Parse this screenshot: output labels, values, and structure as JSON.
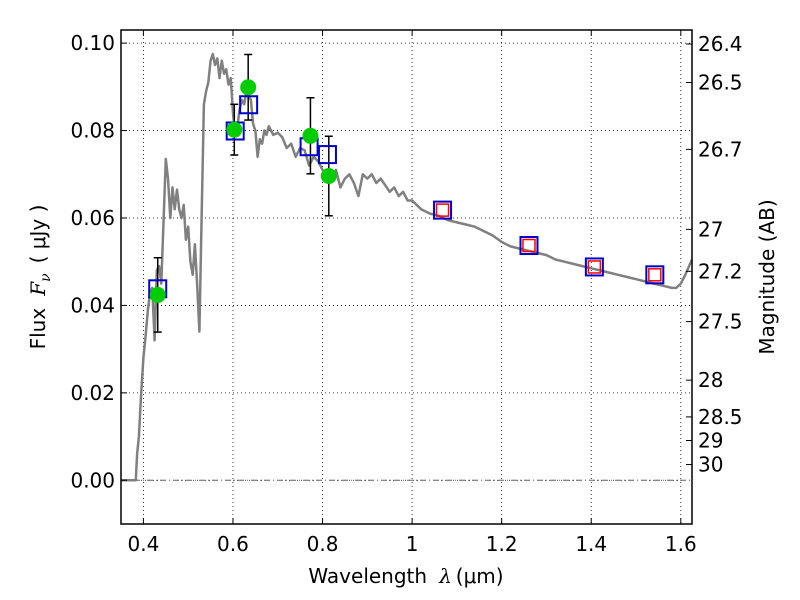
{
  "chart_data": {
    "type": "scatter",
    "title": "",
    "xlabel": {
      "prefix": "Wavelength",
      "symbol": "λ",
      "unit": "(μm)"
    },
    "ylabel": {
      "prefix": "Flux",
      "symbol": "F",
      "subscript": "ν",
      "unit": "( μJy )"
    },
    "y2label": "Magnitude (AB)",
    "xlim": [
      0.35,
      1.625
    ],
    "ylim": [
      -0.01,
      0.103
    ],
    "xticks": [
      0.4,
      0.6,
      0.8,
      1.0,
      1.2,
      1.4,
      1.6
    ],
    "xtick_labels": [
      "0.4",
      "0.6",
      "0.8",
      "1",
      "1.2",
      "1.4",
      "1.6"
    ],
    "yticks": [
      0.0,
      0.02,
      0.04,
      0.06,
      0.08,
      0.1
    ],
    "ytick_labels": [
      "0.00",
      "0.02",
      "0.04",
      "0.06",
      "0.08",
      "0.10"
    ],
    "y2ticks": [
      {
        "label": "26.4",
        "flux": 0.0998
      },
      {
        "label": "26.5",
        "flux": 0.091
      },
      {
        "label": "26.7",
        "flux": 0.0757
      },
      {
        "label": "27",
        "flux": 0.0574
      },
      {
        "label": "27.2",
        "flux": 0.0478
      },
      {
        "label": "27.5",
        "flux": 0.0363
      },
      {
        "label": "28",
        "flux": 0.0229
      },
      {
        "label": "28.5",
        "flux": 0.0145
      },
      {
        "label": "29",
        "flux": 0.0091
      },
      {
        "label": "30",
        "flux": 0.0036
      }
    ],
    "grid": true,
    "colors": {
      "model": "#808080",
      "observed": "#00cc00",
      "synthetic_box": "#0000cc",
      "synthetic_inner": "#ff0000",
      "errorbar": "#000000"
    },
    "model_sed": {
      "x": [
        0.35,
        0.383,
        0.386,
        0.39,
        0.395,
        0.4,
        0.405,
        0.41,
        0.415,
        0.42,
        0.425,
        0.43,
        0.435,
        0.44,
        0.445,
        0.45,
        0.455,
        0.46,
        0.465,
        0.47,
        0.475,
        0.48,
        0.485,
        0.49,
        0.495,
        0.5,
        0.505,
        0.51,
        0.515,
        0.52,
        0.525,
        0.53,
        0.535,
        0.54,
        0.545,
        0.55,
        0.555,
        0.56,
        0.565,
        0.57,
        0.575,
        0.58,
        0.585,
        0.59,
        0.595,
        0.6,
        0.605,
        0.61,
        0.615,
        0.62,
        0.625,
        0.63,
        0.635,
        0.64,
        0.645,
        0.65,
        0.655,
        0.66,
        0.665,
        0.67,
        0.675,
        0.68,
        0.685,
        0.69,
        0.7,
        0.71,
        0.72,
        0.73,
        0.74,
        0.75,
        0.76,
        0.77,
        0.78,
        0.79,
        0.8,
        0.81,
        0.82,
        0.83,
        0.84,
        0.85,
        0.86,
        0.87,
        0.88,
        0.89,
        0.9,
        0.91,
        0.92,
        0.93,
        0.94,
        0.95,
        0.96,
        0.97,
        0.98,
        0.99,
        1.0,
        1.02,
        1.04,
        1.06,
        1.08,
        1.1,
        1.12,
        1.14,
        1.16,
        1.18,
        1.2,
        1.22,
        1.24,
        1.26,
        1.28,
        1.3,
        1.32,
        1.34,
        1.36,
        1.38,
        1.4,
        1.42,
        1.44,
        1.46,
        1.48,
        1.5,
        1.52,
        1.54,
        1.56,
        1.58,
        1.59,
        1.6,
        1.61,
        1.625
      ],
      "y": [
        0.0,
        0.0,
        0.006,
        0.01,
        0.02,
        0.028,
        0.033,
        0.039,
        0.043,
        0.044,
        0.032,
        0.048,
        0.049,
        0.045,
        0.059,
        0.0735,
        0.069,
        0.06,
        0.067,
        0.062,
        0.0665,
        0.062,
        0.06,
        0.063,
        0.055,
        0.058,
        0.05,
        0.047,
        0.054,
        0.045,
        0.034,
        0.06,
        0.086,
        0.089,
        0.091,
        0.096,
        0.0975,
        0.095,
        0.0965,
        0.092,
        0.096,
        0.093,
        0.094,
        0.0905,
        0.092,
        0.084,
        0.079,
        0.081,
        0.085,
        0.087,
        0.086,
        0.089,
        0.088,
        0.087,
        0.0815,
        0.08,
        0.074,
        0.078,
        0.077,
        0.08,
        0.079,
        0.081,
        0.08,
        0.079,
        0.0795,
        0.0785,
        0.076,
        0.077,
        0.074,
        0.076,
        0.0755,
        0.072,
        0.074,
        0.073,
        0.071,
        0.07,
        0.069,
        0.071,
        0.067,
        0.069,
        0.07,
        0.068,
        0.065,
        0.07,
        0.069,
        0.07,
        0.068,
        0.069,
        0.0675,
        0.066,
        0.067,
        0.065,
        0.066,
        0.064,
        0.064,
        0.062,
        0.061,
        0.0605,
        0.0595,
        0.059,
        0.0585,
        0.058,
        0.057,
        0.056,
        0.0545,
        0.0535,
        0.053,
        0.0525,
        0.052,
        0.0515,
        0.0505,
        0.05,
        0.0495,
        0.049,
        0.0485,
        0.048,
        0.0475,
        0.047,
        0.0465,
        0.046,
        0.0455,
        0.045,
        0.0445,
        0.044,
        0.044,
        0.045,
        0.047,
        0.0505
      ]
    },
    "observed_points": [
      {
        "x": 0.432,
        "y": 0.0424,
        "err": 0.0085
      },
      {
        "x": 0.603,
        "y": 0.0802,
        "err": 0.0058
      },
      {
        "x": 0.634,
        "y": 0.0899,
        "err": 0.0075
      },
      {
        "x": 0.773,
        "y": 0.0788,
        "err": 0.0087
      },
      {
        "x": 0.814,
        "y": 0.0696,
        "err": 0.0091
      }
    ],
    "synthetic_points": [
      {
        "x": 0.432,
        "y": 0.0438,
        "inner": false
      },
      {
        "x": 0.605,
        "y": 0.0799,
        "inner": false
      },
      {
        "x": 0.635,
        "y": 0.0859,
        "inner": false
      },
      {
        "x": 0.77,
        "y": 0.0763,
        "inner": false
      },
      {
        "x": 0.811,
        "y": 0.0745,
        "inner": false
      },
      {
        "x": 1.068,
        "y": 0.0618,
        "inner": true
      },
      {
        "x": 1.261,
        "y": 0.0537,
        "inner": true
      },
      {
        "x": 1.407,
        "y": 0.0488,
        "inner": true
      },
      {
        "x": 1.542,
        "y": 0.047,
        "inner": true
      }
    ]
  }
}
